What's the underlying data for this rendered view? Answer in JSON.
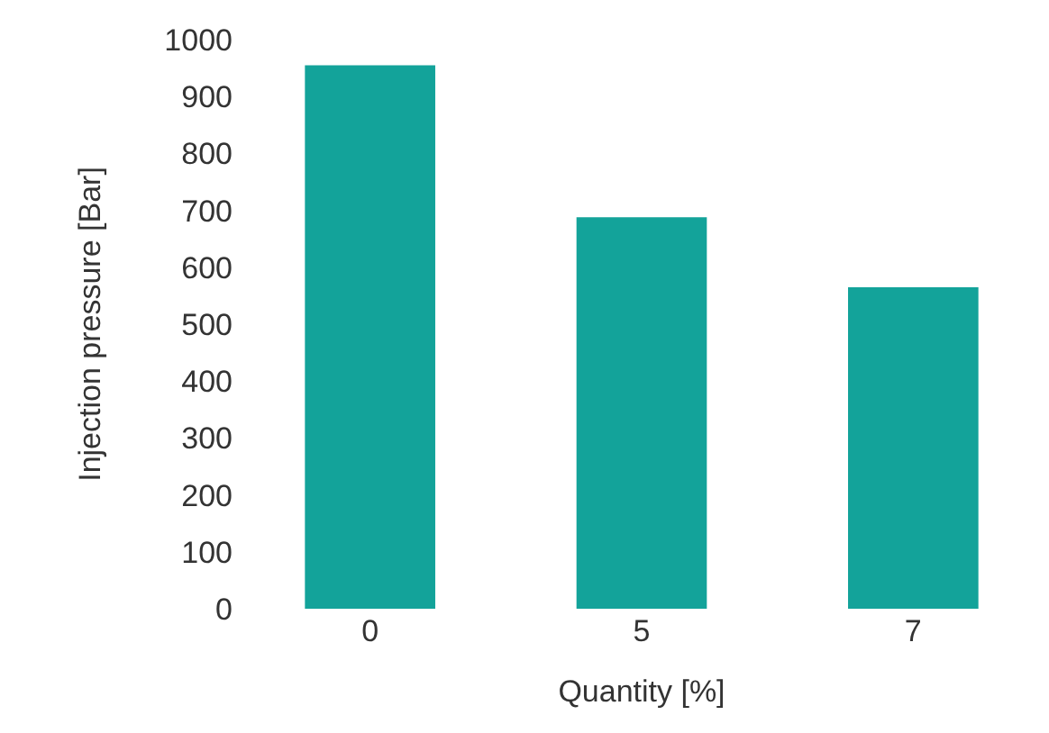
{
  "chart_data": {
    "type": "bar",
    "xlabel": "Quantity [%]",
    "ylabel": "Injection pressure [Bar]",
    "categories": [
      "0",
      "5",
      "7"
    ],
    "values": [
      955,
      688,
      565
    ],
    "color": "#13a39a",
    "ylim": [
      0,
      1000
    ],
    "yticks": [
      0,
      100,
      200,
      300,
      400,
      500,
      600,
      700,
      800,
      900,
      1000
    ],
    "grid": false
  }
}
